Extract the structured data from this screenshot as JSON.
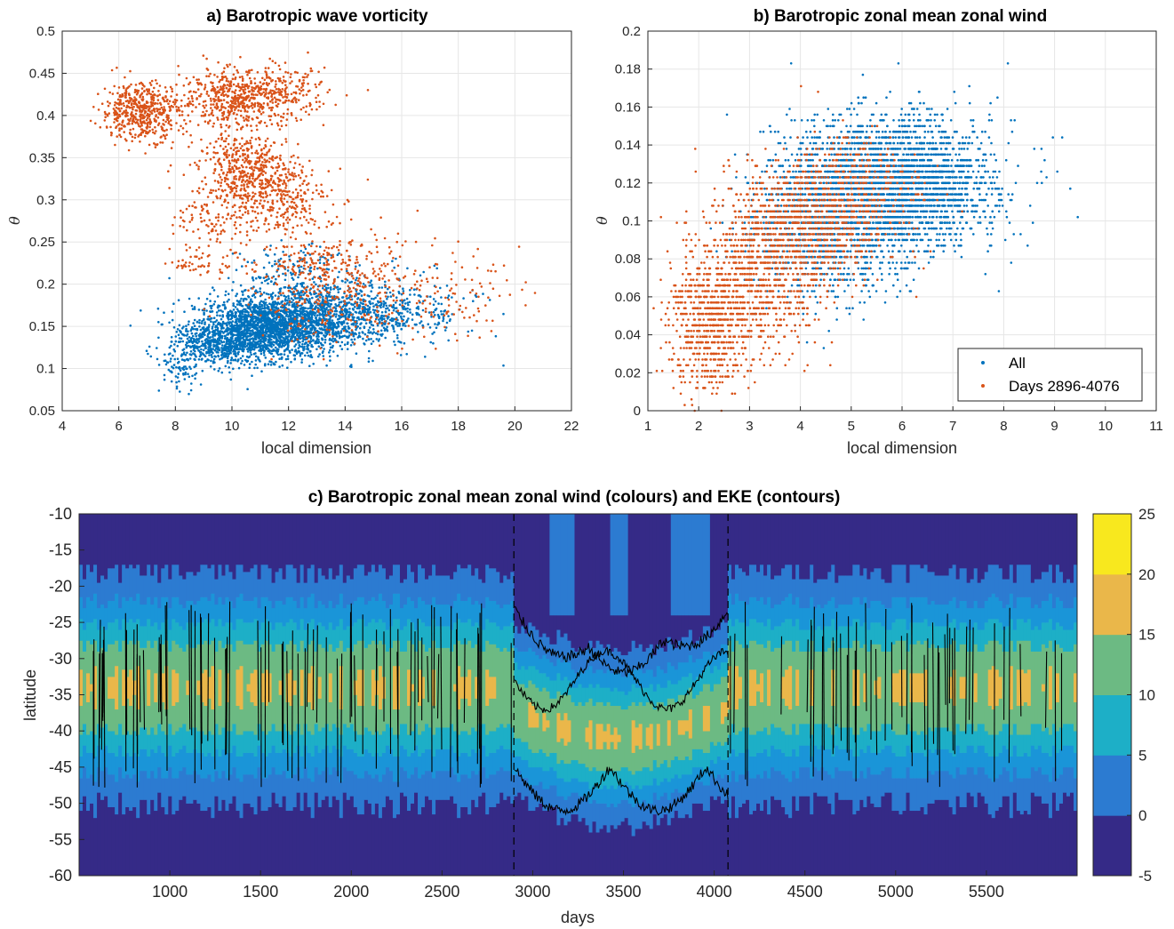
{
  "chart_data": [
    {
      "panel": "a",
      "type": "scatter",
      "title": "a) Barotropic wave vorticity",
      "xlabel": "local dimension",
      "ylabel": "θ",
      "xlim": [
        4,
        22
      ],
      "ylim": [
        0.05,
        0.5
      ],
      "xticks": [
        "4",
        "6",
        "8",
        "10",
        "12",
        "14",
        "16",
        "18",
        "20",
        "22"
      ],
      "yticks": [
        "0.05",
        "0.1",
        "0.15",
        "0.2",
        "0.25",
        "0.3",
        "0.35",
        "0.4",
        "0.45",
        "0.5"
      ],
      "grid": true,
      "series": [
        {
          "color": "#0072BD",
          "clusters": [
            {
              "x": 11.3,
              "y": 0.148,
              "sx": 1.3,
              "sy": 0.018,
              "n": 1800
            },
            {
              "x": 13.2,
              "y": 0.165,
              "sx": 1.6,
              "sy": 0.02,
              "n": 900
            },
            {
              "x": 9.6,
              "y": 0.128,
              "sx": 0.9,
              "sy": 0.012,
              "n": 500
            },
            {
              "x": 15.5,
              "y": 0.17,
              "sx": 1.6,
              "sy": 0.022,
              "n": 250
            },
            {
              "x": 8.1,
              "y": 0.095,
              "sx": 0.35,
              "sy": 0.012,
              "n": 60
            },
            {
              "x": 12.2,
              "y": 0.215,
              "sx": 0.9,
              "sy": 0.015,
              "n": 120
            }
          ]
        },
        {
          "color": "#D95319",
          "clusters": [
            {
              "x": 6.8,
              "y": 0.405,
              "sx": 0.7,
              "sy": 0.017,
              "n": 520
            },
            {
              "x": 10.0,
              "y": 0.42,
              "sx": 0.9,
              "sy": 0.018,
              "n": 420
            },
            {
              "x": 11.6,
              "y": 0.425,
              "sx": 0.9,
              "sy": 0.015,
              "n": 260
            },
            {
              "x": 10.6,
              "y": 0.335,
              "sx": 0.9,
              "sy": 0.022,
              "n": 480
            },
            {
              "x": 11.5,
              "y": 0.3,
              "sx": 1.0,
              "sy": 0.02,
              "n": 260
            },
            {
              "x": 9.4,
              "y": 0.27,
              "sx": 0.7,
              "sy": 0.02,
              "n": 100
            },
            {
              "x": 13.2,
              "y": 0.23,
              "sx": 1.4,
              "sy": 0.018,
              "n": 200
            },
            {
              "x": 13.5,
              "y": 0.18,
              "sx": 1.6,
              "sy": 0.025,
              "n": 260
            },
            {
              "x": 17.5,
              "y": 0.19,
              "sx": 1.3,
              "sy": 0.025,
              "n": 110
            },
            {
              "x": 8.8,
              "y": 0.225,
              "sx": 0.5,
              "sy": 0.008,
              "n": 40
            }
          ]
        }
      ]
    },
    {
      "panel": "b",
      "type": "scatter",
      "title": "b) Barotropic zonal mean zonal wind",
      "xlabel": "local dimension",
      "ylabel": "θ",
      "xlim": [
        1,
        11
      ],
      "ylim": [
        0,
        0.2
      ],
      "xticks": [
        "1",
        "2",
        "3",
        "4",
        "5",
        "6",
        "7",
        "8",
        "9",
        "10",
        "11"
      ],
      "yticks": [
        "0",
        "0.02",
        "0.04",
        "0.06",
        "0.08",
        "0.1",
        "0.12",
        "0.14",
        "0.16",
        "0.18",
        "0.2"
      ],
      "grid": true,
      "legend_position": "bottom-right",
      "legend": [
        "All",
        "Days 2896-4076"
      ],
      "series": [
        {
          "name": "All",
          "color": "#0072BD",
          "clusters": [
            {
              "x": 5.6,
              "y": 0.118,
              "sx": 0.9,
              "sy": 0.018,
              "n": 2600
            },
            {
              "x": 4.4,
              "y": 0.095,
              "sx": 0.8,
              "sy": 0.018,
              "n": 900
            },
            {
              "x": 6.6,
              "y": 0.12,
              "sx": 0.6,
              "sy": 0.015,
              "n": 500
            },
            {
              "x": 7.8,
              "y": 0.13,
              "sx": 0.7,
              "sy": 0.02,
              "n": 60
            }
          ]
        },
        {
          "name": "Days 2896-4076",
          "color": "#D95319",
          "clusters": [
            {
              "x": 2.2,
              "y": 0.045,
              "sx": 0.4,
              "sy": 0.018,
              "n": 650
            },
            {
              "x": 3.2,
              "y": 0.075,
              "sx": 0.6,
              "sy": 0.022,
              "n": 800
            },
            {
              "x": 4.3,
              "y": 0.1,
              "sx": 0.7,
              "sy": 0.018,
              "n": 700
            },
            {
              "x": 5.2,
              "y": 0.12,
              "sx": 0.6,
              "sy": 0.014,
              "n": 200
            }
          ]
        }
      ]
    },
    {
      "panel": "c",
      "type": "heatmap",
      "title": "c) Barotropic zonal mean zonal wind (colours) and EKE (contours)",
      "xlabel": "days",
      "ylabel": "latitude",
      "xlim": [
        500,
        6000
      ],
      "ylim": [
        -60,
        -10
      ],
      "xticks": [
        "1000",
        "1500",
        "2000",
        "2500",
        "3000",
        "3500",
        "4000",
        "4500",
        "5000",
        "5500"
      ],
      "yticks": [
        "-10",
        "-15",
        "-20",
        "-25",
        "-30",
        "-35",
        "-40",
        "-45",
        "-50",
        "-55",
        "-60"
      ],
      "colorbar_ticks": [
        "25",
        "20",
        "15",
        "10",
        "5",
        "0",
        "-5"
      ],
      "colorbar_levels": [
        -5,
        0,
        5,
        10,
        15,
        20,
        25
      ],
      "colors": [
        "#352A87",
        "#2C7BD1",
        "#1A95D8",
        "#1DAFC7",
        "#6CBA83",
        "#EAB74A",
        "#F8E81E"
      ],
      "dashed_lines_days": [
        2896,
        4076
      ],
      "contour_color": "#000000"
    }
  ]
}
